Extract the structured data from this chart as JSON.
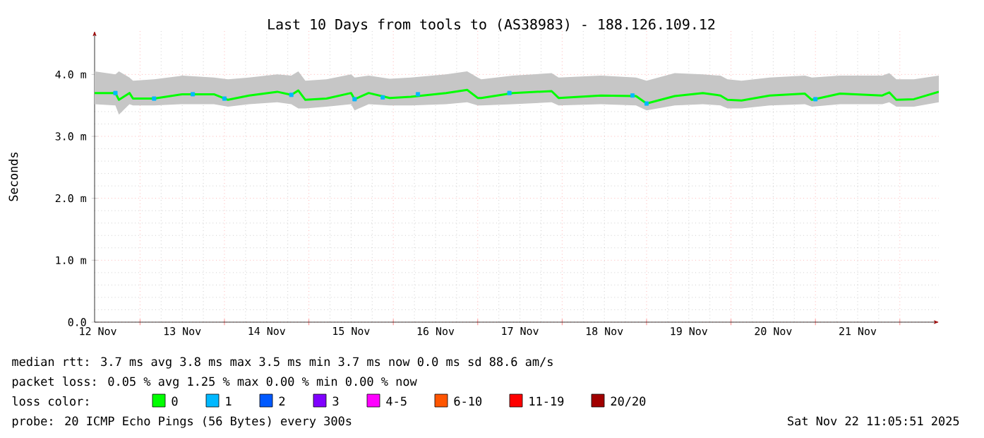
{
  "chart_data": {
    "type": "line",
    "title": "Last 10 Days from tools to (AS38983) - 188.126.109.12",
    "ylabel": "Seconds",
    "legend_title": "loss color:",
    "legend": "bottom",
    "grid": true,
    "xlim": [
      "2025-11-12T11:05",
      "2025-11-22T11:05"
    ],
    "xticks": [
      {
        "value": "2025-11-13T00:00",
        "label": null
      },
      {
        "value": "2025-11-14T00:00",
        "label": null
      },
      {
        "value": "2025-11-15T00:00",
        "label": null
      },
      {
        "value": "2025-11-16T00:00",
        "label": null
      },
      {
        "value": "2025-11-17T00:00",
        "label": null
      },
      {
        "value": "2025-11-18T00:00",
        "label": null
      },
      {
        "value": "2025-11-19T00:00",
        "label": null
      },
      {
        "value": "2025-11-20T00:00",
        "label": null
      },
      {
        "value": "2025-11-21T00:00",
        "label": null
      },
      {
        "value": "2025-11-22T00:00",
        "label": null
      },
      {
        "value": "2025-11-12T12:00",
        "label": "12 Nov"
      },
      {
        "value": "2025-11-13T12:00",
        "label": "13 Nov"
      },
      {
        "value": "2025-11-14T12:00",
        "label": "14 Nov"
      },
      {
        "value": "2025-11-15T12:00",
        "label": "15 Nov"
      },
      {
        "value": "2025-11-16T12:00",
        "label": "16 Nov"
      },
      {
        "value": "2025-11-17T12:00",
        "label": "17 Nov"
      },
      {
        "value": "2025-11-18T12:00",
        "label": "18 Nov"
      },
      {
        "value": "2025-11-19T12:00",
        "label": "19 Nov"
      },
      {
        "value": "2025-11-20T12:00",
        "label": "20 Nov"
      },
      {
        "value": "2025-11-21T12:00",
        "label": "21 Nov"
      }
    ],
    "ylim": [
      0,
      4.7
    ],
    "yticks": [
      {
        "value": 0,
        "label": "0.0"
      },
      {
        "value": 1,
        "label": "1.0 m"
      },
      {
        "value": 2,
        "label": "2.0 m"
      },
      {
        "value": 3,
        "label": "3.0 m"
      },
      {
        "value": 4,
        "label": "4.0 m"
      }
    ],
    "series": [
      {
        "name": "0",
        "color": "#00ff00",
        "x": [
          "2025-11-12T11:05",
          "2025-11-12T17:00",
          "2025-11-12T18:00",
          "2025-11-12T21:00",
          "2025-11-12T22:00",
          "2025-11-13T04:00",
          "2025-11-13T12:00",
          "2025-11-13T21:00",
          "2025-11-14T01:00",
          "2025-11-14T07:00",
          "2025-11-14T15:00",
          "2025-11-14T19:00",
          "2025-11-14T21:00",
          "2025-11-14T23:00",
          "2025-11-15T05:00",
          "2025-11-15T12:00",
          "2025-11-15T13:00",
          "2025-11-15T17:00",
          "2025-11-15T23:00",
          "2025-11-16T05:00",
          "2025-11-16T15:00",
          "2025-11-16T21:00",
          "2025-11-17T00:00",
          "2025-11-17T01:00",
          "2025-11-17T10:00",
          "2025-11-17T21:00",
          "2025-11-17T23:00",
          "2025-11-18T11:00",
          "2025-11-18T21:00",
          "2025-11-19T00:00",
          "2025-11-19T08:00",
          "2025-11-19T16:00",
          "2025-11-19T21:00",
          "2025-11-19T23:00",
          "2025-11-20T03:00",
          "2025-11-20T11:00",
          "2025-11-20T21:00",
          "2025-11-20T23:00",
          "2025-11-21T07:00",
          "2025-11-21T19:00",
          "2025-11-21T21:00",
          "2025-11-21T23:00",
          "2025-11-22T04:00",
          "2025-11-22T11:05"
        ],
        "values": [
          3.7,
          3.7,
          3.59,
          3.7,
          3.61,
          3.61,
          3.68,
          3.68,
          3.59,
          3.66,
          3.72,
          3.67,
          3.74,
          3.59,
          3.61,
          3.7,
          3.6,
          3.7,
          3.62,
          3.64,
          3.7,
          3.75,
          3.62,
          3.62,
          3.7,
          3.73,
          3.62,
          3.66,
          3.65,
          3.53,
          3.65,
          3.7,
          3.66,
          3.59,
          3.58,
          3.66,
          3.69,
          3.59,
          3.69,
          3.66,
          3.71,
          3.59,
          3.6,
          3.72
        ],
        "lower": [
          3.52,
          3.5,
          3.35,
          3.52,
          3.5,
          3.5,
          3.52,
          3.52,
          3.48,
          3.52,
          3.55,
          3.52,
          3.45,
          3.45,
          3.48,
          3.52,
          3.42,
          3.52,
          3.5,
          3.5,
          3.52,
          3.55,
          3.5,
          3.5,
          3.52,
          3.55,
          3.5,
          3.52,
          3.5,
          3.42,
          3.5,
          3.52,
          3.5,
          3.45,
          3.45,
          3.5,
          3.52,
          3.48,
          3.52,
          3.52,
          3.55,
          3.48,
          3.48,
          3.55
        ],
        "upper": [
          4.05,
          4.0,
          4.05,
          3.95,
          3.9,
          3.92,
          3.98,
          3.95,
          3.92,
          3.95,
          4.0,
          3.98,
          4.05,
          3.9,
          3.92,
          4.0,
          3.95,
          3.98,
          3.93,
          3.95,
          4.0,
          4.05,
          3.95,
          3.92,
          3.98,
          4.02,
          3.95,
          3.98,
          3.95,
          3.9,
          4.02,
          4.0,
          3.98,
          3.92,
          3.9,
          3.95,
          3.98,
          3.95,
          3.98,
          3.98,
          4.02,
          3.92,
          3.92,
          3.98
        ]
      },
      {
        "name": "1",
        "color": "#00b8ff",
        "type": "scatter",
        "marker": "square",
        "x": [
          "2025-11-12T17:00",
          "2025-11-13T04:00",
          "2025-11-13T15:00",
          "2025-11-14T00:00",
          "2025-11-14T19:00",
          "2025-11-15T13:00",
          "2025-11-15T21:00",
          "2025-11-16T07:00",
          "2025-11-17T09:00",
          "2025-11-18T20:00",
          "2025-11-19T00:00",
          "2025-11-21T00:00"
        ],
        "values": [
          3.7,
          3.61,
          3.68,
          3.61,
          3.67,
          3.6,
          3.63,
          3.68,
          3.7,
          3.66,
          3.53,
          3.6
        ]
      },
      {
        "name": "2",
        "color": "#0059ff"
      },
      {
        "name": "3",
        "color": "#8000ff"
      },
      {
        "name": "4-5",
        "color": "#ff00ff"
      },
      {
        "name": "6-10",
        "color": "#ff5500"
      },
      {
        "name": "11-19",
        "color": "#ff0000"
      },
      {
        "name": "20/20",
        "color": "#a10000"
      }
    ],
    "annotations": [
      "median rtt:  3.7 ms avg  3.8 ms max  3.5 ms min  3.7 ms now  0.0 ms sd  88.6  am/s",
      "packet loss: 0.05 % avg  1.25 % max  0.00 % min  0.00 % now",
      "probe:  20 ICMP Echo Pings (56 Bytes) every 300s",
      "Sat Nov 22 11:05:51 2025"
    ]
  }
}
